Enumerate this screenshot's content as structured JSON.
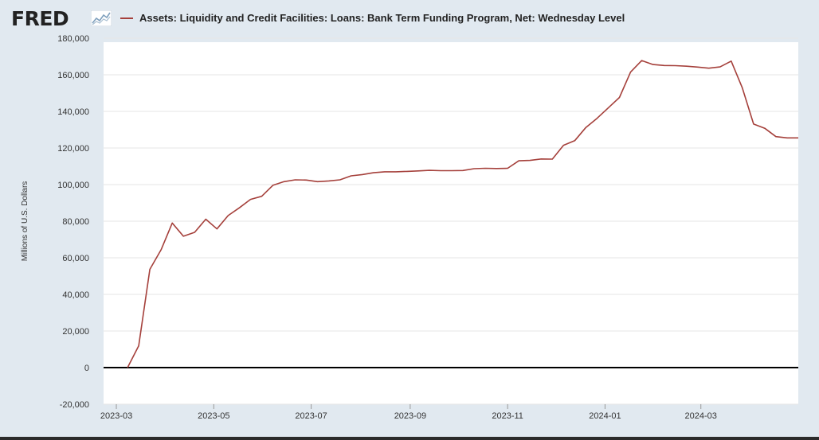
{
  "header": {
    "logo_text": "FRED",
    "logo_graph_icon": "line-graph-icon"
  },
  "colors": {
    "series": "#a5403b",
    "background": "#e1e9f0",
    "plot": "#ffffff",
    "grid": "#e6e6e6",
    "zero_line": "#000000"
  },
  "chart_data": {
    "type": "line",
    "title": "",
    "xlabel": "",
    "ylabel": "Millions of U.S. Dollars",
    "ylim": [
      -20000,
      180000
    ],
    "xlim": [
      "2023-02-21",
      "2024-05-01"
    ],
    "yticks": [
      -20000,
      0,
      20000,
      40000,
      60000,
      80000,
      100000,
      120000,
      140000,
      160000,
      180000
    ],
    "ytick_labels": [
      "-20,000",
      "0",
      "20,000",
      "40,000",
      "60,000",
      "80,000",
      "100,000",
      "120,000",
      "140,000",
      "160,000",
      "180,000"
    ],
    "xticks": [
      "2023-03-01",
      "2023-05-01",
      "2023-07-01",
      "2023-09-01",
      "2023-11-01",
      "2024-01-01",
      "2024-03-01"
    ],
    "xtick_labels": [
      "2023-03",
      "2023-05",
      "2023-07",
      "2023-09",
      "2023-11",
      "2024-01",
      "2024-03"
    ],
    "grid": true,
    "legend": "top-left",
    "series": [
      {
        "name": "Assets: Liquidity and Credit Facilities: Loans: Bank Term Funding Program, Net: Wednesday Level",
        "color": "#a5403b",
        "x": [
          "2023-03-08",
          "2023-03-15",
          "2023-03-22",
          "2023-03-29",
          "2023-04-05",
          "2023-04-12",
          "2023-04-19",
          "2023-04-26",
          "2023-05-03",
          "2023-05-10",
          "2023-05-17",
          "2023-05-24",
          "2023-05-31",
          "2023-06-07",
          "2023-06-14",
          "2023-06-21",
          "2023-06-28",
          "2023-07-05",
          "2023-07-12",
          "2023-07-19",
          "2023-07-26",
          "2023-08-02",
          "2023-08-09",
          "2023-08-16",
          "2023-08-23",
          "2023-08-30",
          "2023-09-06",
          "2023-09-13",
          "2023-09-20",
          "2023-09-27",
          "2023-10-04",
          "2023-10-11",
          "2023-10-18",
          "2023-10-25",
          "2023-11-01",
          "2023-11-08",
          "2023-11-15",
          "2023-11-22",
          "2023-11-29",
          "2023-12-06",
          "2023-12-13",
          "2023-12-20",
          "2023-12-27",
          "2024-01-03",
          "2024-01-10",
          "2024-01-17",
          "2024-01-24",
          "2024-01-31",
          "2024-02-07",
          "2024-02-14",
          "2024-02-21",
          "2024-02-28",
          "2024-03-06",
          "2024-03-13",
          "2024-03-20",
          "2024-03-27",
          "2024-04-03",
          "2024-04-10",
          "2024-04-17",
          "2024-04-24",
          "2024-05-01"
        ],
        "y": [
          0,
          11900,
          53700,
          64400,
          79000,
          71800,
          73900,
          81100,
          75800,
          83100,
          87300,
          91900,
          93600,
          99600,
          101600,
          102600,
          102500,
          101600,
          102000,
          102600,
          104800,
          105500,
          106500,
          107000,
          107000,
          107200,
          107500,
          107800,
          107600,
          107600,
          107700,
          108700,
          108900,
          108800,
          108900,
          113000,
          113200,
          114000,
          113900,
          121500,
          124000,
          131200,
          136200,
          141900,
          147600,
          161500,
          167800,
          165600,
          165100,
          165000,
          164700,
          164200,
          163600,
          164300,
          167500,
          152800,
          133100,
          130800,
          126200,
          125500,
          125500
        ]
      }
    ]
  }
}
